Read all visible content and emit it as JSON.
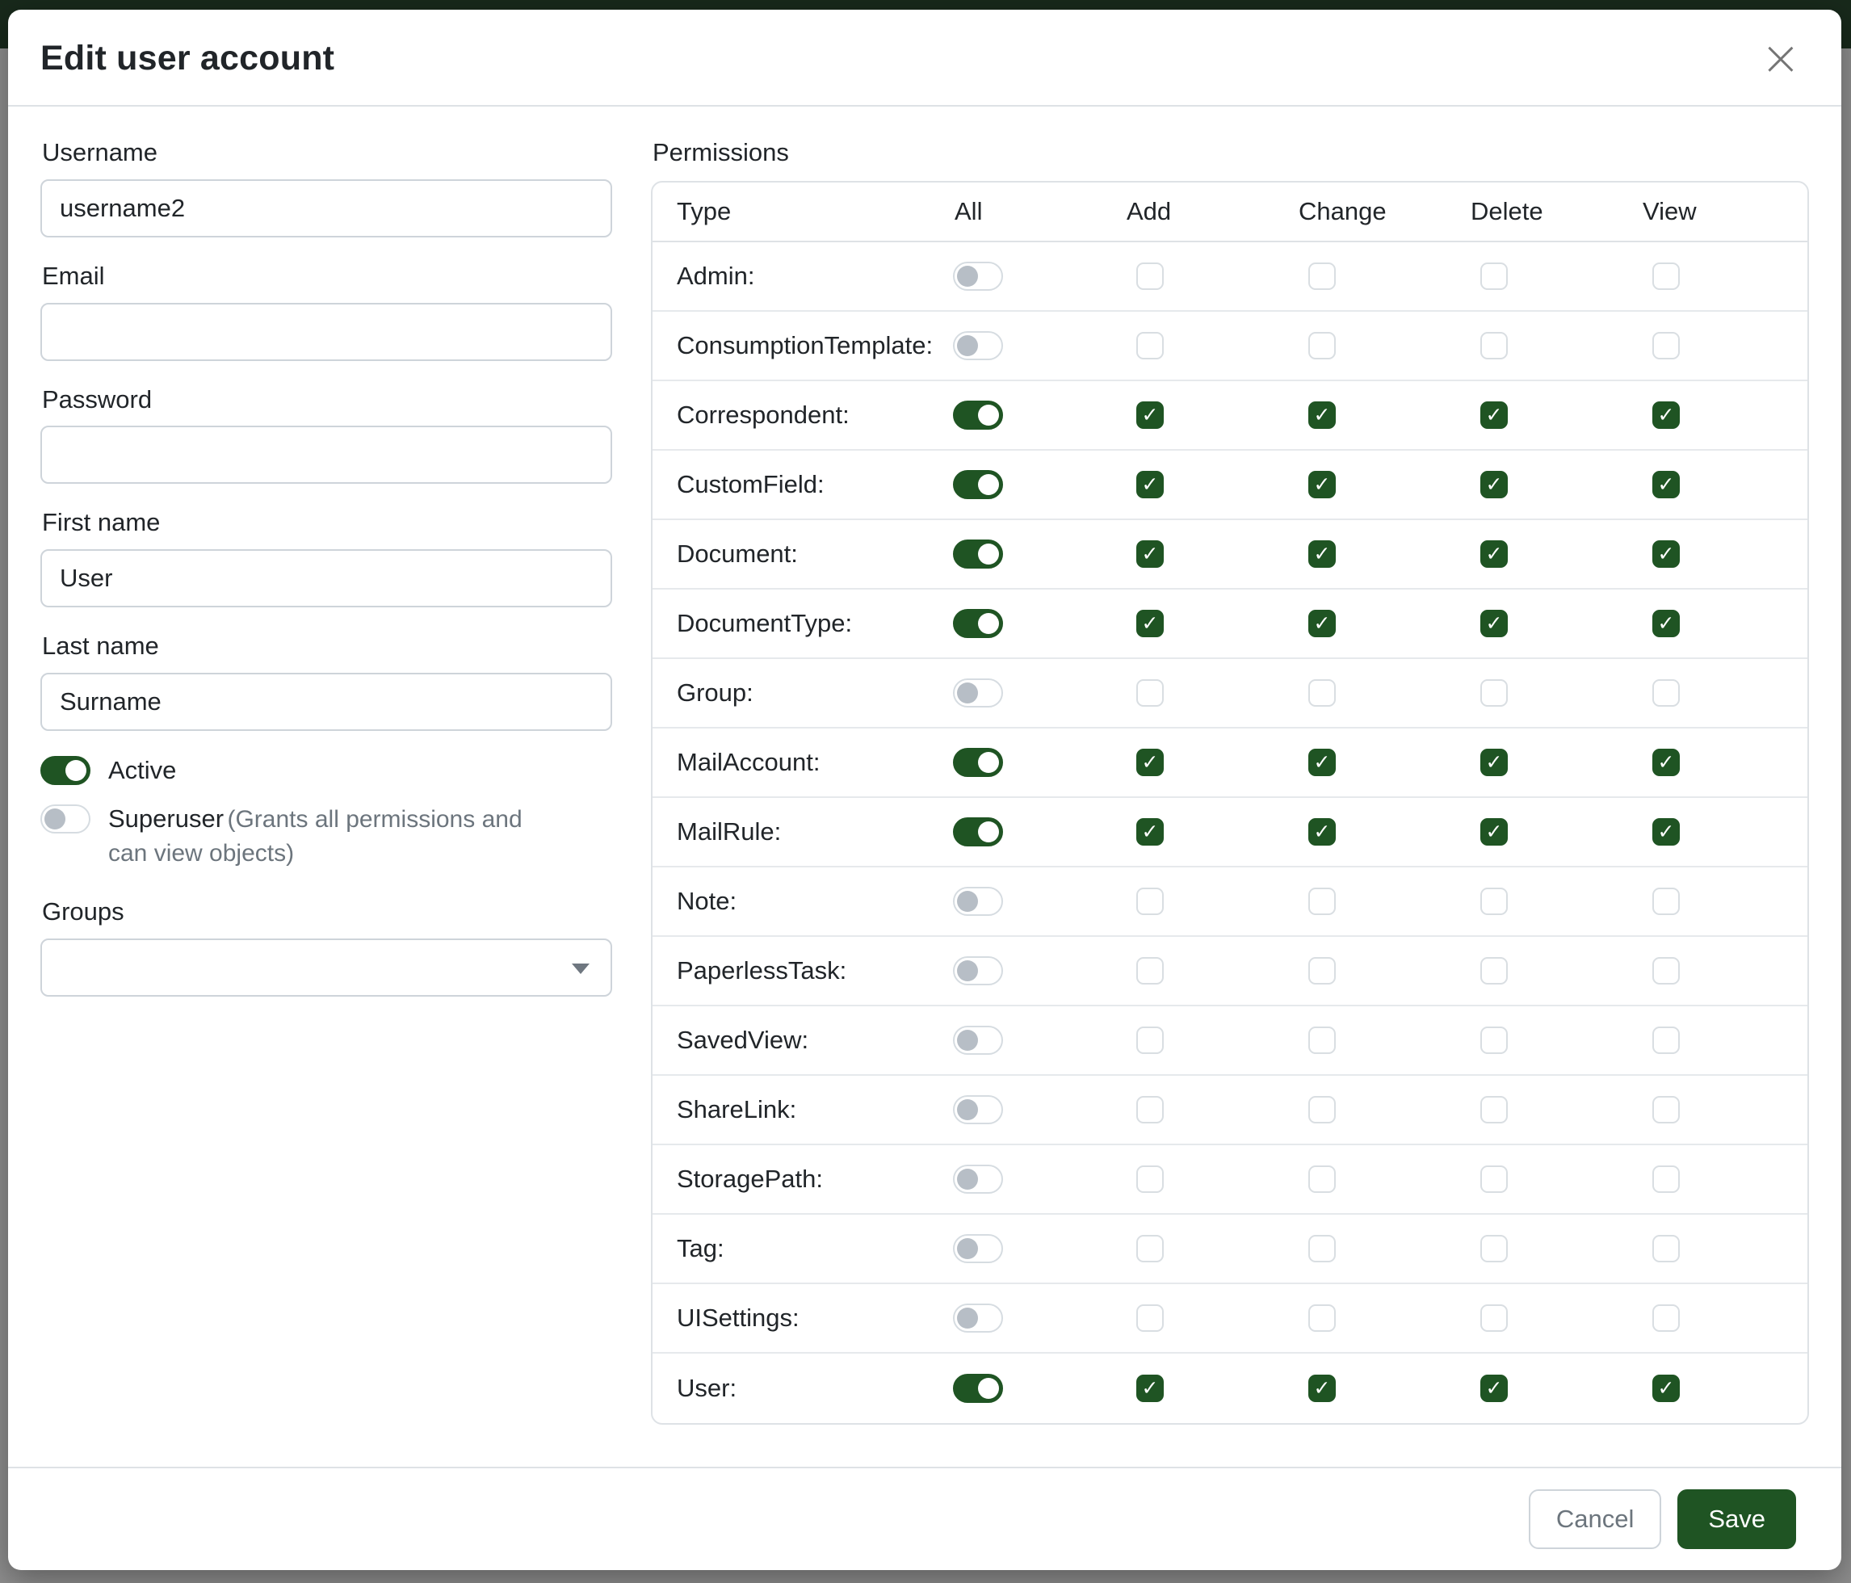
{
  "colors": {
    "accent": "#1f5423",
    "navbar": "#18291b",
    "backdrop": "#8e8e8e"
  },
  "modal": {
    "title": "Edit user account",
    "close_icon": "×",
    "form": {
      "username": {
        "label": "Username",
        "value": "username2"
      },
      "email": {
        "label": "Email",
        "value": ""
      },
      "password": {
        "label": "Password",
        "value": ""
      },
      "first_name": {
        "label": "First name",
        "value": "User"
      },
      "last_name": {
        "label": "Last name",
        "value": "Surname"
      },
      "active": {
        "label": "Active",
        "on": true
      },
      "superuser": {
        "label": "Superuser",
        "hint": "(Grants all permissions and can view objects)",
        "on": false
      },
      "groups": {
        "label": "Groups",
        "value": ""
      }
    },
    "permissions": {
      "label": "Permissions",
      "check_icon": "✓",
      "columns": [
        "Type",
        "All",
        "Add",
        "Change",
        "Delete",
        "View"
      ],
      "rows": [
        {
          "type": "Admin:",
          "all": false,
          "add": false,
          "change": false,
          "delete": false,
          "view": false
        },
        {
          "type": "ConsumptionTemplate:",
          "all": false,
          "add": false,
          "change": false,
          "delete": false,
          "view": false
        },
        {
          "type": "Correspondent:",
          "all": true,
          "add": true,
          "change": true,
          "delete": true,
          "view": true
        },
        {
          "type": "CustomField:",
          "all": true,
          "add": true,
          "change": true,
          "delete": true,
          "view": true
        },
        {
          "type": "Document:",
          "all": true,
          "add": true,
          "change": true,
          "delete": true,
          "view": true
        },
        {
          "type": "DocumentType:",
          "all": true,
          "add": true,
          "change": true,
          "delete": true,
          "view": true
        },
        {
          "type": "Group:",
          "all": false,
          "add": false,
          "change": false,
          "delete": false,
          "view": false
        },
        {
          "type": "MailAccount:",
          "all": true,
          "add": true,
          "change": true,
          "delete": true,
          "view": true
        },
        {
          "type": "MailRule:",
          "all": true,
          "add": true,
          "change": true,
          "delete": true,
          "view": true
        },
        {
          "type": "Note:",
          "all": false,
          "add": false,
          "change": false,
          "delete": false,
          "view": false
        },
        {
          "type": "PaperlessTask:",
          "all": false,
          "add": false,
          "change": false,
          "delete": false,
          "view": false
        },
        {
          "type": "SavedView:",
          "all": false,
          "add": false,
          "change": false,
          "delete": false,
          "view": false
        },
        {
          "type": "ShareLink:",
          "all": false,
          "add": false,
          "change": false,
          "delete": false,
          "view": false
        },
        {
          "type": "StoragePath:",
          "all": false,
          "add": false,
          "change": false,
          "delete": false,
          "view": false
        },
        {
          "type": "Tag:",
          "all": false,
          "add": false,
          "change": false,
          "delete": false,
          "view": false
        },
        {
          "type": "UISettings:",
          "all": false,
          "add": false,
          "change": false,
          "delete": false,
          "view": false
        },
        {
          "type": "User:",
          "all": true,
          "add": true,
          "change": true,
          "delete": true,
          "view": true
        }
      ]
    },
    "footer": {
      "cancel_label": "Cancel",
      "save_label": "Save"
    }
  }
}
